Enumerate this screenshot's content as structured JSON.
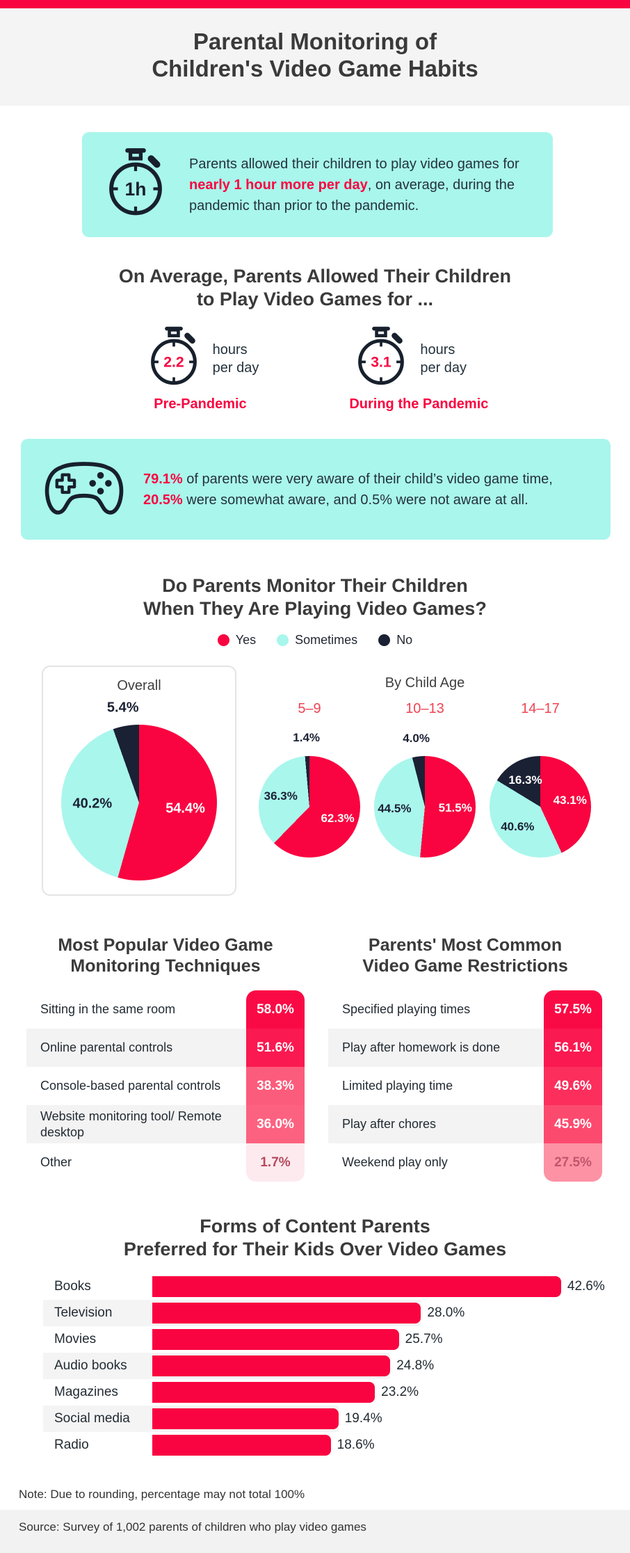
{
  "theme": {
    "accent_red": "#f90440",
    "mint": "#a9f6ec",
    "navy": "#1b2134",
    "heading_gray": "#3a3a3a",
    "age_label_red": "#ee4353"
  },
  "header": {
    "title_line1": "Parental Monitoring of",
    "title_line2": "Children's Video Game Habits"
  },
  "callout_hour": {
    "icon": "stopwatch-icon",
    "badge": "1h",
    "segments": [
      {
        "text": "Parents allowed their children to play video games for ",
        "highlight": false
      },
      {
        "text": "nearly 1 hour more per day",
        "highlight": true
      },
      {
        "text": ", on average, during the pandemic than prior to the pandemic.",
        "highlight": false
      }
    ]
  },
  "avg_section": {
    "title_line1": "On Average, Parents Allowed Their Children",
    "title_line2": "to Play Video Games for ...",
    "items": [
      {
        "value": "2.2",
        "unit_line1": "hours",
        "unit_line2": "per day",
        "label": "Pre-Pandemic"
      },
      {
        "value": "3.1",
        "unit_line1": "hours",
        "unit_line2": "per day",
        "label": "During the Pandemic"
      }
    ]
  },
  "awareness_callout": {
    "icon": "gamepad-icon",
    "segments": [
      {
        "text": "79.1%",
        "highlight": true
      },
      {
        "text": " of parents were very aware of their child’s video game time, ",
        "highlight": false
      },
      {
        "text": "20.5%",
        "highlight": true
      },
      {
        "text": " were somewhat aware, and 0.5% were not aware at all.",
        "highlight": false
      }
    ]
  },
  "monitor_section": {
    "title_line1": "Do Parents Monitor Their Children",
    "title_line2": "When They Are Playing Video Games?",
    "legend": [
      {
        "label": "Yes",
        "color": "#f90440"
      },
      {
        "label": "Sometimes",
        "color": "#a9f6ec"
      },
      {
        "label": "No",
        "color": "#1b2134"
      }
    ],
    "overall_title": "Overall",
    "byage_title": "By Child Age"
  },
  "tables_section": {
    "left_title_line1": "Most Popular Video Game",
    "left_title_line2": "Monitoring Techniques",
    "right_title_line1": "Parents' Most Common",
    "right_title_line2": "Video Game Restrictions"
  },
  "bars_section": {
    "title_line1": "Forms of Content Parents",
    "title_line2": "Preferred for Their Kids Over Video Games"
  },
  "footer": {
    "note": "Note: Due to rounding, percentage may not total 100%",
    "source": "Source: Survey of 1,002 parents of children who play video games"
  },
  "chart_data": [
    {
      "type": "pie",
      "title": "Overall",
      "labels": [
        "Yes",
        "Sometimes",
        "No"
      ],
      "values": [
        54.4,
        40.2,
        5.4
      ],
      "colors": [
        "#f90440",
        "#a9f6ec",
        "#1b2134"
      ],
      "text_colors": [
        "#ffffff",
        "#1b2134",
        "#ffffff"
      ],
      "legend_position": "top",
      "grid": false
    },
    {
      "type": "pie",
      "title": "5–9",
      "labels": [
        "Yes",
        "Sometimes",
        "No"
      ],
      "values": [
        62.3,
        36.3,
        1.4
      ],
      "colors": [
        "#f90440",
        "#a9f6ec",
        "#1b2134"
      ],
      "text_colors": [
        "#ffffff",
        "#1b2134",
        "#ffffff"
      ]
    },
    {
      "type": "pie",
      "title": "10–13",
      "labels": [
        "Yes",
        "Sometimes",
        "No"
      ],
      "values": [
        51.5,
        44.5,
        4.0
      ],
      "colors": [
        "#f90440",
        "#a9f6ec",
        "#1b2134"
      ],
      "text_colors": [
        "#ffffff",
        "#1b2134",
        "#ffffff"
      ]
    },
    {
      "type": "pie",
      "title": "14–17",
      "labels": [
        "Yes",
        "Sometimes",
        "No"
      ],
      "values": [
        43.1,
        40.6,
        16.3
      ],
      "colors": [
        "#f90440",
        "#a9f6ec",
        "#1b2134"
      ],
      "text_colors": [
        "#ffffff",
        "#1b2134",
        "#ffffff"
      ]
    },
    {
      "type": "table",
      "title": "Most Popular Video Game Monitoring Techniques",
      "rows": [
        {
          "label": "Sitting in the same room",
          "value": 58.0,
          "chip_color": "#fa0a45",
          "text_color": "#ffffff"
        },
        {
          "label": "Online parental controls",
          "value": 51.6,
          "chip_color": "#fa1950",
          "text_color": "#ffffff"
        },
        {
          "label": "Console-based parental controls",
          "value": 38.3,
          "chip_color": "#fc5c7b",
          "text_color": "#ffffff"
        },
        {
          "label": "Website monitoring tool/ Remote desktop",
          "value": 36.0,
          "chip_color": "#fc6280",
          "text_color": "#ffffff"
        },
        {
          "label": "Other",
          "value": 1.7,
          "chip_color": "#fdeaee",
          "text_color": "#b54a5e"
        }
      ]
    },
    {
      "type": "table",
      "title": "Parents' Most Common Video Game Restrictions",
      "rows": [
        {
          "label": "Specified playing times",
          "value": 57.5,
          "chip_color": "#fa0a45",
          "text_color": "#ffffff"
        },
        {
          "label": "Play after homework is done",
          "value": 56.1,
          "chip_color": "#fa1950",
          "text_color": "#ffffff"
        },
        {
          "label": "Limited playing time",
          "value": 49.6,
          "chip_color": "#fb2e5c",
          "text_color": "#ffffff"
        },
        {
          "label": "Play after chores",
          "value": 45.9,
          "chip_color": "#fc4a6e",
          "text_color": "#ffffff"
        },
        {
          "label": "Weekend play only",
          "value": 27.5,
          "chip_color": "#fd92a5",
          "text_color": "#c2556b"
        }
      ]
    },
    {
      "type": "bar",
      "title": "Forms of Content Parents Preferred for Their Kids Over Video Games",
      "categories": [
        "Books",
        "Television",
        "Movies",
        "Audio books",
        "Magazines",
        "Social media",
        "Radio"
      ],
      "values": [
        42.6,
        28.0,
        25.7,
        24.8,
        23.2,
        19.4,
        18.6
      ],
      "bar_color": "#f90440",
      "value_suffix": "%",
      "xlim": [
        0,
        45
      ],
      "grid": false
    }
  ]
}
